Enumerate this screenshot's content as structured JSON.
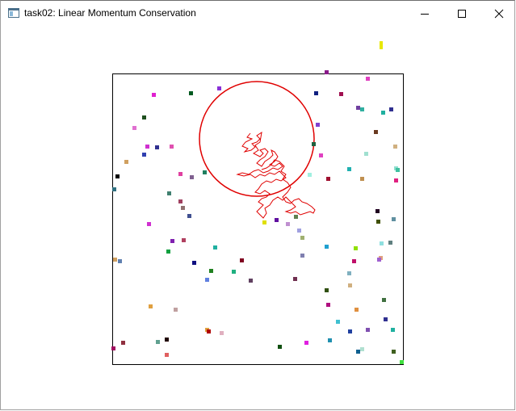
{
  "window": {
    "title": "task02: Linear Momentum Conservation",
    "icon": "app-window-icon",
    "controls": [
      "minimize-icon",
      "maximize-icon",
      "close-icon"
    ]
  },
  "simulation": {
    "box_color": "#000000",
    "circle_color": "#e00000",
    "trail_color": "#e00000",
    "particle_count": 96
  }
}
